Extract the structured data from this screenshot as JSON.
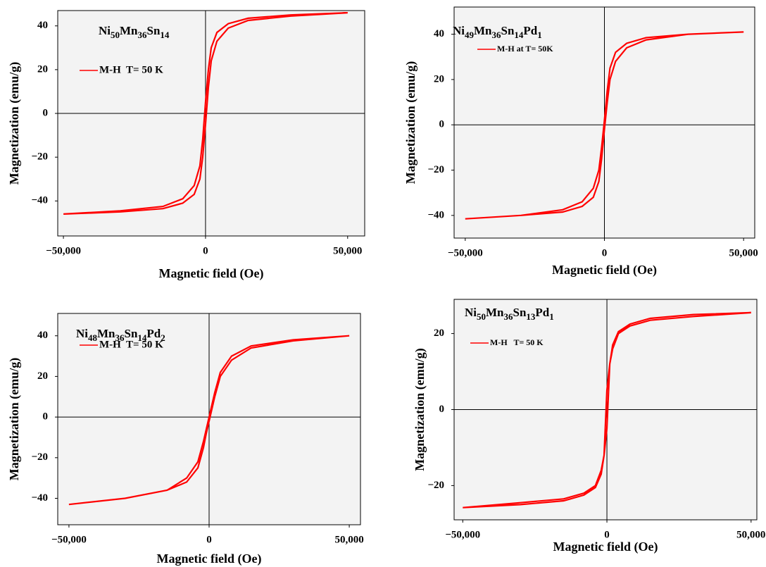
{
  "chart_data": [
    {
      "type": "line",
      "title_parts": [
        "Ni",
        "50",
        "Mn",
        "36",
        "Sn",
        "14"
      ],
      "xlabel": "Magnetic field (Oe)",
      "ylabel": "Magnetization (emu/g)",
      "x": [
        50000,
        30000,
        15000,
        8000,
        4000,
        2000,
        1000,
        0,
        -1000,
        -2000,
        -4000,
        -8000,
        -15000,
        -30000,
        -50000,
        -50000,
        -30000,
        -15000,
        -8000,
        -4000,
        -2000,
        -1000,
        0,
        1000,
        2000,
        4000,
        8000,
        15000,
        30000,
        50000
      ],
      "series": [
        {
          "name": "M-H  T= 50 K",
          "color": "#ff0000",
          "values": [
            46,
            45,
            43.5,
            41,
            37,
            30,
            20,
            5,
            -12,
            -24,
            -33,
            -39,
            -42.5,
            -44.5,
            -46,
            -46,
            -45,
            -43.5,
            -41,
            -37,
            -30,
            -20,
            -5,
            12,
            24,
            33,
            39,
            42.5,
            44.5,
            46
          ]
        }
      ],
      "xlim": [
        -52000,
        56000
      ],
      "xticks": [
        {
          "value": -50000,
          "label": "−50,000"
        },
        0,
        {
          "value": 50000,
          "label": "50,000"
        }
      ],
      "ylim": [
        -56,
        47
      ],
      "yticks": [
        {
          "value": -40,
          "label": "−40"
        },
        {
          "value": -20,
          "label": "−20"
        },
        0,
        20,
        40
      ]
    },
    {
      "type": "line",
      "title_parts": [
        "Ni",
        "49",
        "Mn",
        "36",
        "Sn",
        "14",
        "Pd",
        "1"
      ],
      "xlabel": "Magnetic field (Oe)",
      "ylabel": "Magnetization (emu/g)",
      "x": [
        50000,
        30000,
        15000,
        8000,
        4000,
        2000,
        1000,
        0,
        -1000,
        -2000,
        -4000,
        -8000,
        -15000,
        -30000,
        -50000,
        -50000,
        -30000,
        -15000,
        -8000,
        -4000,
        -2000,
        -1000,
        0,
        1000,
        2000,
        4000,
        8000,
        15000,
        30000,
        50000
      ],
      "series": [
        {
          "name": "M-H at T= 50K",
          "color": "#ff0000",
          "values": [
            41,
            40,
            38.5,
            36,
            32,
            25,
            15,
            2,
            -10,
            -20,
            -28,
            -34,
            -37.5,
            -40,
            -41.5,
            -41.5,
            -40,
            -38.5,
            -36,
            -32,
            -25,
            -15,
            -2,
            10,
            20,
            28,
            34,
            37.5,
            40,
            41
          ]
        }
      ],
      "xlim": [
        -54000,
        54000
      ],
      "xticks": [
        {
          "value": -50000,
          "label": "−50,000"
        },
        0,
        {
          "value": 50000,
          "label": "50,000"
        }
      ],
      "ylim": [
        -50,
        52
      ],
      "yticks": [
        {
          "value": -40,
          "label": "−40"
        },
        {
          "value": -20,
          "label": "−20"
        },
        0,
        20,
        40
      ]
    },
    {
      "type": "line",
      "title_parts": [
        "Ni",
        "48",
        "Mn",
        "36",
        "Sn",
        "14",
        "Pd",
        "2"
      ],
      "xlabel": "Magnetic field (Oe)",
      "ylabel": "Magnetization (emu/g)",
      "x": [
        50000,
        30000,
        15000,
        8000,
        4000,
        2000,
        1000,
        0,
        -1000,
        -2000,
        -4000,
        -8000,
        -15000,
        -30000,
        -50000,
        -50000,
        -30000,
        -15000,
        -8000,
        -4000,
        -2000,
        -1000,
        0,
        1000,
        2000,
        4000,
        8000,
        15000,
        30000,
        50000
      ],
      "series": [
        {
          "name": "M-H  T= 50 K",
          "color": "#ff0000",
          "values": [
            40,
            38,
            35,
            30,
            22,
            12,
            6,
            0,
            -6,
            -12,
            -22,
            -30,
            -36,
            -40,
            -43,
            -43,
            -40,
            -36,
            -32,
            -25,
            -15,
            -8,
            -2,
            4,
            10,
            20,
            28,
            34,
            37.5,
            40
          ]
        }
      ],
      "xlim": [
        -54000,
        54000
      ],
      "xticks": [
        {
          "value": -50000,
          "label": "−50,000"
        },
        0,
        {
          "value": 50000,
          "label": "50,000"
        }
      ],
      "ylim": [
        -53,
        51
      ],
      "yticks": [
        {
          "value": -40,
          "label": "−40"
        },
        {
          "value": -20,
          "label": "−20"
        },
        0,
        20,
        40
      ]
    },
    {
      "type": "line",
      "title_parts": [
        "Ni",
        "50",
        "Mn",
        "36",
        "Sn",
        "13",
        "Pd",
        "1"
      ],
      "xlabel": "Magnetic field (Oe)",
      "ylabel": "Magnetization (emu/g)",
      "x": [
        50000,
        30000,
        15000,
        8000,
        4000,
        2000,
        1000,
        0,
        -1000,
        -2000,
        -4000,
        -8000,
        -15000,
        -30000,
        -50000,
        -50000,
        -30000,
        -15000,
        -8000,
        -4000,
        -2000,
        -1000,
        0,
        1000,
        2000,
        4000,
        8000,
        15000,
        30000,
        50000
      ],
      "series": [
        {
          "name": "M-H   T= 50 K",
          "color": "#ff0000",
          "values": [
            25.5,
            24.5,
            23.5,
            22,
            20,
            16,
            12,
            5,
            -12,
            -17,
            -20.5,
            -22.5,
            -24,
            -25,
            -25.8,
            -25.8,
            -24.5,
            -23.5,
            -22,
            -20,
            -16,
            -12,
            -5,
            12,
            17,
            20.5,
            22.5,
            24,
            25,
            25.5
          ]
        }
      ],
      "xlim": [
        -53000,
        52000
      ],
      "xticks": [
        {
          "value": -50000,
          "label": "−50,000"
        },
        0,
        {
          "value": 50000,
          "label": "50,000"
        }
      ],
      "ylim": [
        -29,
        29
      ],
      "yticks": [
        {
          "value": -20,
          "label": "−20"
        },
        0,
        20
      ]
    }
  ]
}
